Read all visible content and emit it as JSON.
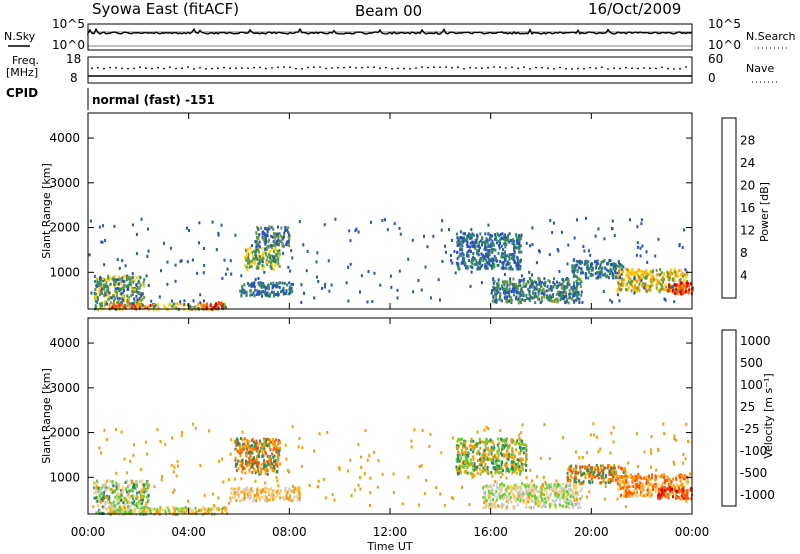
{
  "header": {
    "station": "Syowa East (fitACF)",
    "beam": "Beam 00",
    "date": "16/Oct/2009"
  },
  "noise_panel": {
    "left_label": "N.Sky",
    "right_label": "N.Search",
    "left_ticks": [
      "10^5",
      "10^0"
    ],
    "right_ticks": [
      "10^5",
      "10^0"
    ]
  },
  "freq_panel": {
    "left_label_1": "Freq.",
    "left_label_2": "[MHz]",
    "left_ticks": [
      "18",
      "8"
    ],
    "right_label": "Nave",
    "right_ticks": [
      "60",
      "0"
    ],
    "cpid_label": "CPID"
  },
  "cpid_text": "normal (fast) -151",
  "x_axis": {
    "ticks": [
      "00:00",
      "04:00",
      "08:00",
      "12:00",
      "16:00",
      "20:00",
      "00:00"
    ],
    "label": "Time UT"
  },
  "chart_data": [
    {
      "type": "heatmap",
      "name": "power",
      "ylabel": "Slant Range [km]",
      "ylim": [
        180,
        4560
      ],
      "y_ticks": [
        "4000",
        "3000",
        "2000",
        "1000"
      ],
      "y_tick_values": [
        4000,
        3000,
        2000,
        1000
      ],
      "xlim": [
        0,
        24
      ],
      "colorbar": {
        "label": "Power [dB]",
        "ticks": [
          "28",
          "24",
          "20",
          "16",
          "12",
          "8",
          "4"
        ],
        "colors": [
          "#0000ff",
          "#2a52be",
          "#2e8b57",
          "#6b9b3a",
          "#ffd000",
          "#ff9900",
          "#ff5500",
          "#e00000"
        ]
      },
      "regions": [
        {
          "t": [
            0.2,
            2.2
          ],
          "r": [
            200,
            950
          ],
          "colors": [
            "#2a52be",
            "#2e8b57",
            "#6b9b3a",
            "#ffd000"
          ]
        },
        {
          "t": [
            0.8,
            2.6
          ],
          "r": [
            200,
            330
          ],
          "colors": [
            "#ff5500",
            "#e00000",
            "#ff9900"
          ]
        },
        {
          "t": [
            2.5,
            5.6
          ],
          "r": [
            200,
            330
          ],
          "colors": [
            "#ffd000",
            "#ff9900",
            "#2e8b57"
          ]
        },
        {
          "t": [
            4.5,
            5.4
          ],
          "r": [
            200,
            360
          ],
          "colors": [
            "#e00000",
            "#ff5500"
          ]
        },
        {
          "t": [
            6.2,
            7.6
          ],
          "r": [
            1100,
            1600
          ],
          "colors": [
            "#6b9b3a",
            "#ffd000",
            "#2e8b57"
          ]
        },
        {
          "t": [
            6.6,
            8.0
          ],
          "r": [
            1600,
            2050
          ],
          "colors": [
            "#2a52be",
            "#6b9b3a"
          ]
        },
        {
          "t": [
            6.0,
            8.2
          ],
          "r": [
            500,
            800
          ],
          "colors": [
            "#2e8b57",
            "#2a52be"
          ]
        },
        {
          "t": [
            14.6,
            17.2
          ],
          "r": [
            1100,
            1900
          ],
          "colors": [
            "#2a52be",
            "#2e8b57"
          ]
        },
        {
          "t": [
            16.0,
            19.6
          ],
          "r": [
            350,
            900
          ],
          "colors": [
            "#2a52be",
            "#2e8b57",
            "#6b9b3a"
          ]
        },
        {
          "t": [
            19.2,
            21.2
          ],
          "r": [
            900,
            1300
          ],
          "colors": [
            "#2a52be",
            "#2e8b57"
          ]
        },
        {
          "t": [
            21.0,
            23.8
          ],
          "r": [
            600,
            1100
          ],
          "colors": [
            "#6b9b3a",
            "#ffd000",
            "#ff9900"
          ]
        },
        {
          "t": [
            23.0,
            24.0
          ],
          "r": [
            550,
            800
          ],
          "colors": [
            "#ff5500",
            "#e00000"
          ]
        }
      ]
    },
    {
      "type": "heatmap",
      "name": "velocity",
      "ylabel": "Slant Range [km]",
      "ylim": [
        180,
        4560
      ],
      "y_ticks": [
        "4000",
        "3000",
        "2000",
        "1000"
      ],
      "y_tick_values": [
        4000,
        3000,
        2000,
        1000
      ],
      "xlim": [
        0,
        24
      ],
      "colorbar": {
        "label": "Velocity [m s⁻¹]",
        "ticks": [
          "1000",
          "500",
          "100",
          "25",
          "-25",
          "-100",
          "-500",
          "-1000"
        ],
        "colors": [
          "#e00000",
          "#ff5500",
          "#ff9900",
          "#ffcc66",
          "#cccccc",
          "#66cc33",
          "#2e8b57",
          "#2a52be"
        ]
      },
      "regions": [
        {
          "t": [
            0.2,
            2.4
          ],
          "r": [
            200,
            950
          ],
          "colors": [
            "#66cc33",
            "#2e8b57",
            "#ffcc66",
            "#cccccc"
          ]
        },
        {
          "t": [
            0.8,
            5.6
          ],
          "r": [
            200,
            360
          ],
          "colors": [
            "#ff9900",
            "#ffcc66",
            "#66cc33"
          ]
        },
        {
          "t": [
            5.8,
            7.6
          ],
          "r": [
            1100,
            1900
          ],
          "colors": [
            "#ff5500",
            "#ff9900",
            "#2e8b57"
          ]
        },
        {
          "t": [
            5.6,
            8.4
          ],
          "r": [
            500,
            800
          ],
          "colors": [
            "#ffcc66",
            "#ff9900",
            "#cccccc"
          ]
        },
        {
          "t": [
            14.6,
            17.4
          ],
          "r": [
            1100,
            1900
          ],
          "colors": [
            "#66cc33",
            "#2e8b57",
            "#ff9900"
          ]
        },
        {
          "t": [
            15.6,
            19.6
          ],
          "r": [
            350,
            900
          ],
          "colors": [
            "#cccccc",
            "#66cc33",
            "#ffcc66"
          ]
        },
        {
          "t": [
            19.0,
            21.4
          ],
          "r": [
            900,
            1300
          ],
          "colors": [
            "#ff9900",
            "#ff5500",
            "#2e8b57"
          ]
        },
        {
          "t": [
            21.0,
            23.8
          ],
          "r": [
            600,
            1100
          ],
          "colors": [
            "#ff9900",
            "#ff5500",
            "#ffcc66"
          ]
        },
        {
          "t": [
            22.6,
            24.0
          ],
          "r": [
            550,
            800
          ],
          "colors": [
            "#ff5500",
            "#e00000"
          ]
        }
      ]
    }
  ]
}
